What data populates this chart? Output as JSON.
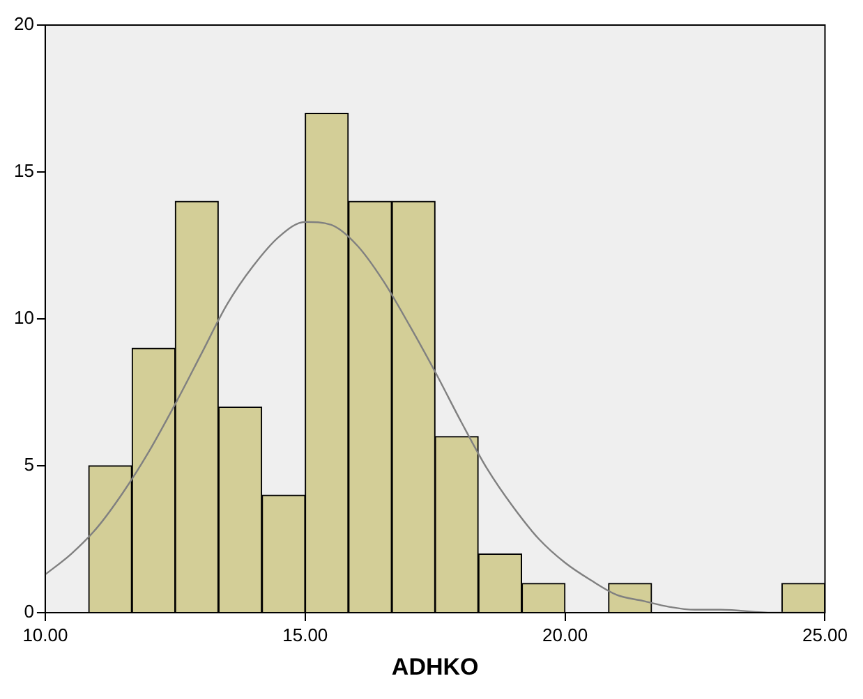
{
  "chart_data": {
    "type": "histogram",
    "xlabel": "ADHKO",
    "bins": [
      10.83,
      11.67,
      12.5,
      13.33,
      14.17,
      15,
      15.83,
      16.67,
      17.5,
      18.33,
      19.17,
      20,
      20.83,
      21.67,
      22.5,
      23.33,
      24.17,
      25
    ],
    "values": [
      5,
      9,
      14,
      7,
      4,
      17,
      14,
      14,
      6,
      2,
      1,
      0,
      1,
      0,
      0,
      0,
      1
    ],
    "color": "#d3ce97",
    "series": [
      {
        "type": "line",
        "color": "#808080",
        "x": [
          10,
          10.5,
          11,
          11.5,
          12,
          12.5,
          13,
          13.5,
          14,
          14.5,
          15,
          15.5,
          16,
          16.5,
          17,
          17.5,
          18,
          18.5,
          19,
          19.5,
          20,
          20.5,
          21,
          21.5,
          22,
          22.5,
          23,
          24,
          25
        ],
        "values": [
          1.3,
          2,
          2.9,
          4.1,
          5.5,
          7.1,
          8.8,
          10.5,
          11.8,
          12.8,
          13.3,
          13.2,
          12.5,
          11.3,
          9.8,
          8.2,
          6.5,
          4.9,
          3.6,
          2.5,
          1.7,
          1.1,
          0.6,
          0.4,
          0.2,
          0.1,
          0.1,
          0,
          0
        ]
      }
    ],
    "xlim": [
      10,
      25
    ],
    "xticks": [
      {
        "value": 10,
        "label": "10.00"
      },
      {
        "value": 15,
        "label": "15.00"
      },
      {
        "value": 20,
        "label": "20.00"
      },
      {
        "value": 25,
        "label": "25.00"
      }
    ],
    "ylim": [
      0,
      20
    ],
    "yticks": [
      0,
      5,
      10,
      15,
      20
    ],
    "grid": false,
    "legend": false,
    "marker": "none"
  }
}
